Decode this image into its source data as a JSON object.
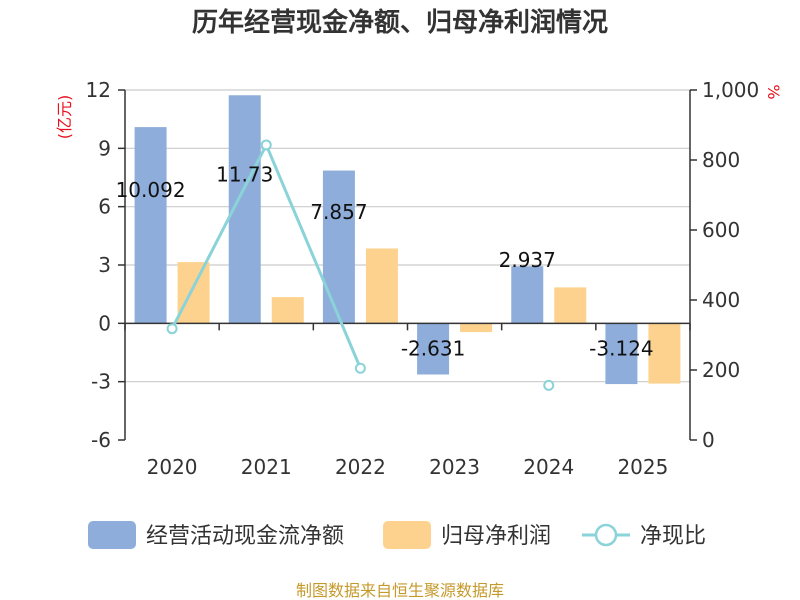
{
  "chart_data": {
    "type": "bar",
    "title": "历年经营现金净额、归母净利润情况",
    "categories": [
      "2020",
      "2021",
      "2022",
      "2023",
      "2024",
      "2025"
    ],
    "left_axis": {
      "unit": "(亿元)",
      "min": -6,
      "max": 12,
      "ticks": [
        "12",
        "9",
        "6",
        "3",
        "0",
        "-3",
        "-6"
      ],
      "tick_values": [
        12,
        9,
        6,
        3,
        0,
        -3,
        -6
      ]
    },
    "right_axis": {
      "unit": "%",
      "min": 0,
      "max": 1000,
      "ticks": [
        "1,000",
        "800",
        "600",
        "400",
        "200",
        "0"
      ],
      "tick_values": [
        1000,
        800,
        600,
        400,
        200,
        0
      ]
    },
    "grid": true,
    "legend_position": "bottom",
    "series": [
      {
        "name": "经营活动现金流净额",
        "kind": "bar",
        "axis": "left",
        "color": "#8eaddb",
        "values": [
          10.092,
          11.73,
          7.857,
          -2.631,
          2.937,
          -3.124
        ],
        "labels": [
          "10.092",
          "11.73",
          "7.857",
          "-2.631",
          "2.937",
          "-3.124"
        ]
      },
      {
        "name": "归母净利润",
        "kind": "bar",
        "axis": "left",
        "color": "#fdd28f",
        "values": [
          3.15,
          1.35,
          3.85,
          -0.45,
          1.85,
          -3.1
        ]
      },
      {
        "name": "净现比",
        "kind": "line",
        "axis": "right",
        "color": "#8ad3d8",
        "values": [
          318,
          843,
          205,
          null,
          156,
          null
        ]
      }
    ],
    "source": "制图数据来自恒生聚源数据库"
  }
}
